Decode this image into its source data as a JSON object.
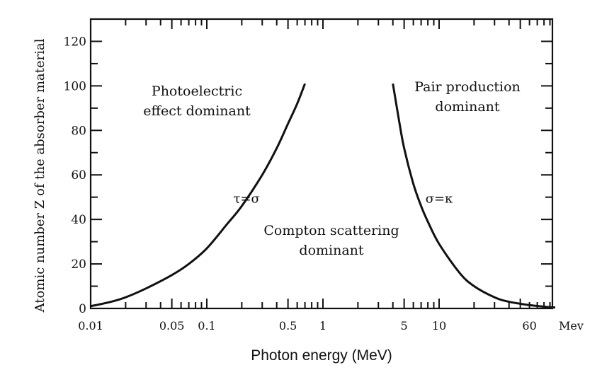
{
  "chart_data": {
    "type": "line",
    "title": "",
    "xlabel": "Photon energy (MeV)",
    "ylabel": "Atomic number Z of the absorber material",
    "x_scale": "log",
    "xlim": [
      0.01,
      120
    ],
    "ylim": [
      0,
      130
    ],
    "x_ticks": [
      0.01,
      0.05,
      0.1,
      0.5,
      1,
      5,
      10,
      60
    ],
    "x_tick_labels": [
      "0.01",
      "0.05",
      "0.1",
      "0.5",
      "1",
      "5",
      "10",
      "60"
    ],
    "x_unit_label": "Mev",
    "y_ticks": [
      0,
      20,
      40,
      60,
      80,
      100,
      120
    ],
    "y_tick_labels": [
      "0",
      "20",
      "40",
      "60",
      "80",
      "100",
      "120"
    ],
    "grid": false,
    "legend": "none",
    "line_color": "#111111",
    "series": [
      {
        "label": "τ=σ",
        "x": [
          0.01,
          0.015,
          0.02,
          0.03,
          0.05,
          0.07,
          0.1,
          0.15,
          0.2,
          0.3,
          0.4,
          0.5,
          0.6,
          0.7
        ],
        "y": [
          1,
          3,
          5,
          9,
          15,
          20,
          27,
          38,
          46,
          60,
          72,
          83,
          92,
          101
        ]
      },
      {
        "label": "σ=κ",
        "x": [
          4,
          4.5,
          5,
          6,
          7,
          8,
          10,
          15,
          20,
          30,
          40,
          60,
          80,
          100
        ],
        "y": [
          101,
          85,
          72,
          56,
          46,
          39,
          29,
          16,
          10,
          5,
          3,
          1.5,
          0.8,
          0.4
        ]
      }
    ],
    "annotations": [
      {
        "id": "photoelectric",
        "lines": [
          "Photoelectric",
          "effect dominant"
        ]
      },
      {
        "id": "pair",
        "lines": [
          "Pair production",
          "dominant"
        ]
      },
      {
        "id": "compton",
        "lines": [
          "Compton scattering",
          "dominant"
        ]
      }
    ]
  }
}
